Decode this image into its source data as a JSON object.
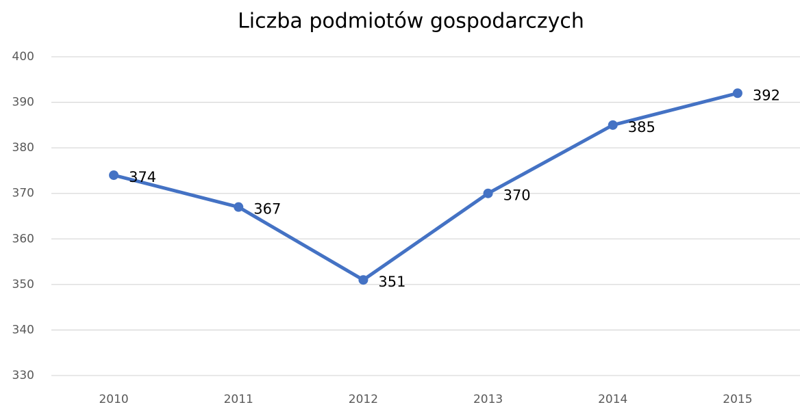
{
  "chart_data": {
    "type": "line",
    "title": "Liczba podmiotów gospodarczych",
    "categories": [
      "2010",
      "2011",
      "2012",
      "2013",
      "2014",
      "2015"
    ],
    "values": [
      374,
      367,
      351,
      370,
      385,
      392
    ],
    "color": "#4472c4",
    "ylim": [
      330,
      400
    ],
    "yticks": [
      330,
      340,
      350,
      360,
      370,
      380,
      390,
      400
    ],
    "grid": true
  }
}
